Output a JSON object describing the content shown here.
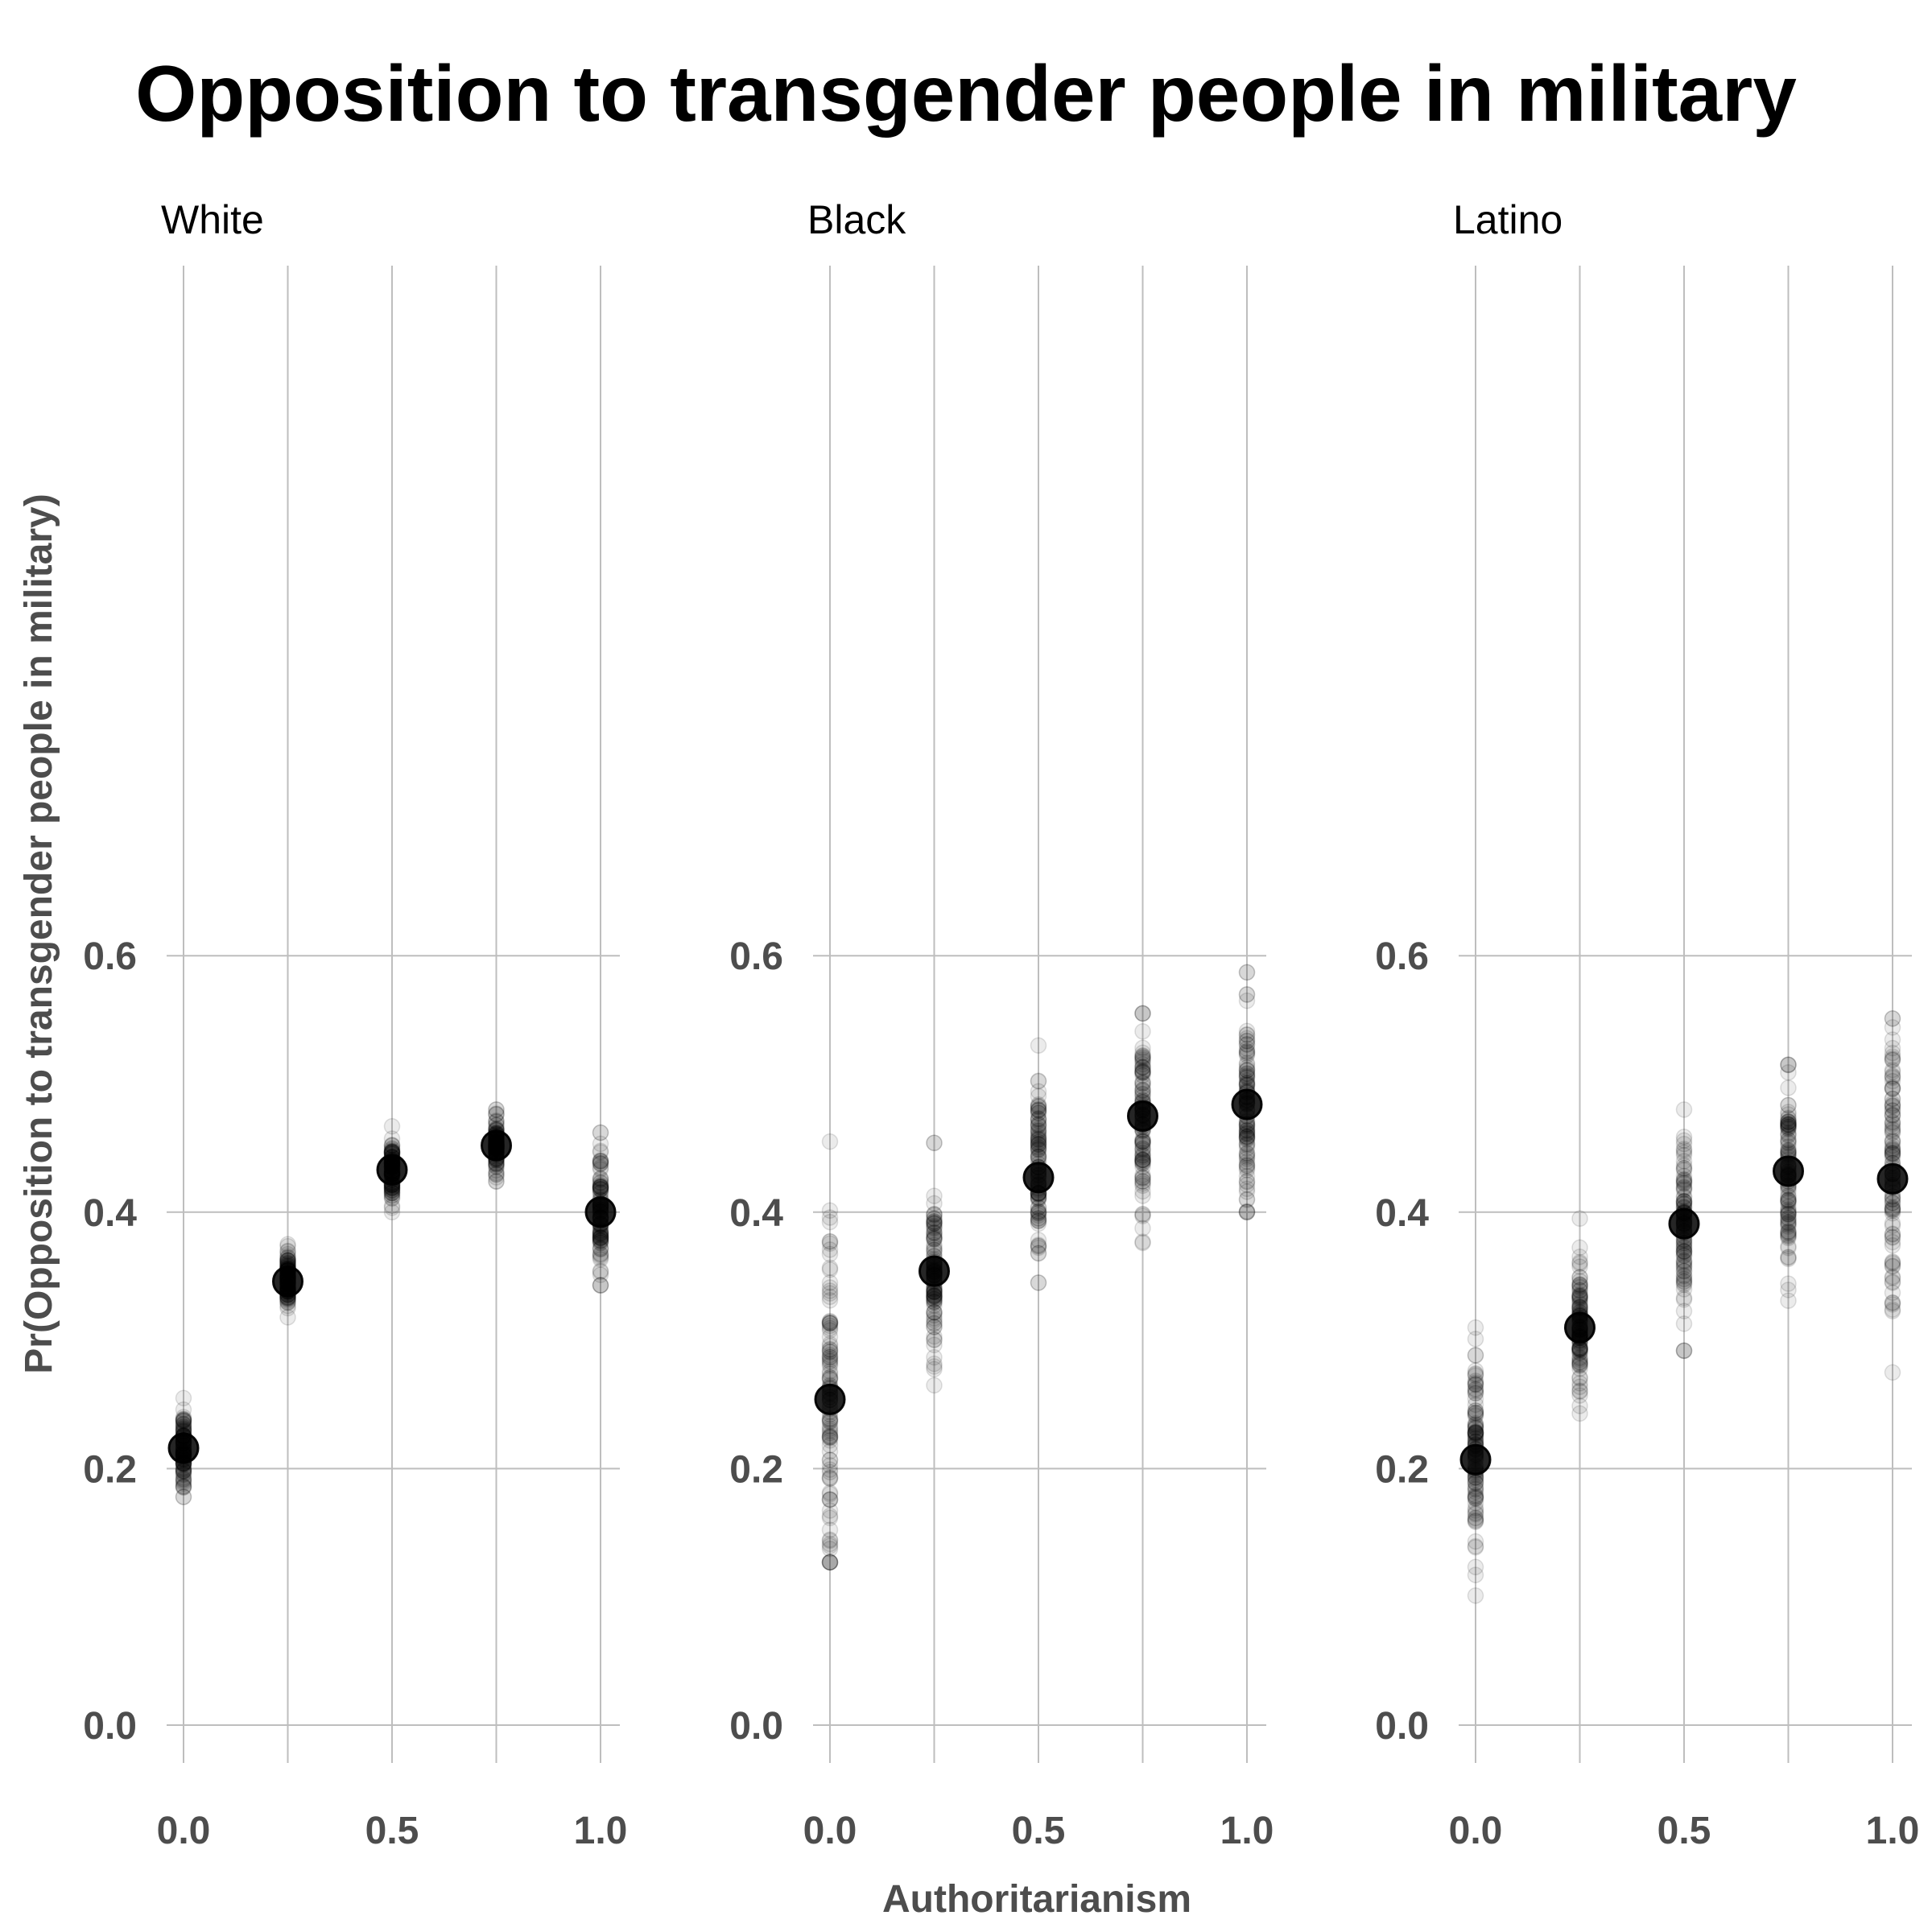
{
  "chart_data": {
    "type": "scatter",
    "title": "Opposition to transgender people in military",
    "xlabel": "Authoritarianism",
    "ylabel": "Pr(Opposition to transgender people in military)",
    "xlim": [
      0,
      1
    ],
    "ylim": [
      0,
      0.6
    ],
    "x_ticks": [
      "0.0",
      "0.5",
      "1.0"
    ],
    "y_ticks": [
      "0.0",
      "0.2",
      "0.4",
      "0.6"
    ],
    "grid": true,
    "legend": "none",
    "point_color": "#000000",
    "panels": [
      {
        "name": "White",
        "x": [
          0,
          0.25,
          0.5,
          0.75,
          1.0
        ],
        "mean": [
          0.216,
          0.346,
          0.433,
          0.452,
          0.4
        ],
        "sim_min": [
          0.178,
          0.318,
          0.4,
          0.424,
          0.343
        ],
        "sim_max": [
          0.255,
          0.375,
          0.467,
          0.48,
          0.462
        ]
      },
      {
        "name": "Black",
        "x": [
          0,
          0.25,
          0.5,
          0.75,
          1.0
        ],
        "mean": [
          0.254,
          0.354,
          0.427,
          0.475,
          0.484
        ],
        "sim_min": [
          0.127,
          0.265,
          0.345,
          0.376,
          0.4
        ],
        "sim_max": [
          0.455,
          0.454,
          0.53,
          0.555,
          0.587
        ]
      },
      {
        "name": "Latino",
        "x": [
          0,
          0.25,
          0.5,
          0.75,
          1.0
        ],
        "mean": [
          0.207,
          0.31,
          0.391,
          0.432,
          0.426
        ],
        "sim_min": [
          0.101,
          0.243,
          0.292,
          0.331,
          0.275
        ],
        "sim_max": [
          0.31,
          0.395,
          0.48,
          0.515,
          0.551
        ]
      }
    ]
  }
}
